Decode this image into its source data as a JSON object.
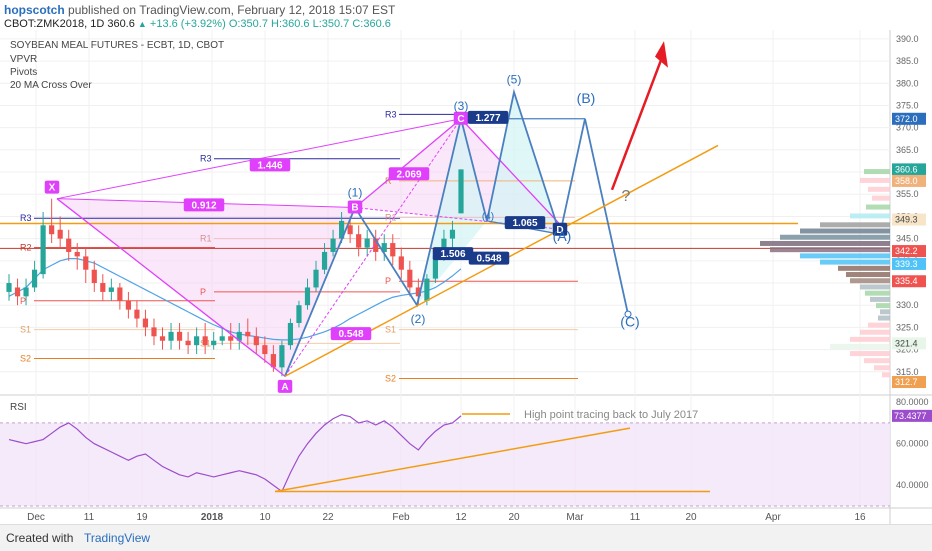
{
  "header": {
    "author": "hopscotch",
    "published": "published on TradingView.com, February 12, 2018 15:07 EST",
    "symbol": "CBOT:ZMK2018, 1D",
    "last": "360.6",
    "change": "+13.6 (+3.92%)",
    "ohlc": "O:350.7 H:360.6 L:350.7 C:360.6"
  },
  "legend": {
    "title": "SOYBEAN MEAL FUTURES - ECBT, 1D, CBOT",
    "items": [
      "VPVR",
      "Pivots",
      "20 MA Cross Over"
    ]
  },
  "footer": {
    "created_with": "Created with",
    "brand": "TradingView"
  },
  "colors": {
    "up": "#26a69a",
    "down": "#ef5350",
    "pattern_magenta": "#e040fb",
    "pattern_blue": "#2a6ebd",
    "trend_orange": "#f39c12",
    "arrow_red": "#e51c23"
  },
  "chart_data": [
    {
      "type": "candlestick",
      "title": "SOYBEAN MEAL FUTURES - ECBT, 1D, CBOT",
      "ylim": [
        310,
        392
      ],
      "y_ticks": [
        315,
        320,
        325,
        330,
        335,
        340,
        345,
        350,
        355,
        360,
        365,
        370,
        375,
        380,
        385,
        390
      ],
      "x_ticks": [
        "Dec",
        "11",
        "19",
        "2018",
        "10",
        "22",
        "Feb",
        "12",
        "20",
        "Mar",
        "11",
        "20",
        "Apr",
        "16"
      ],
      "price_labels": [
        {
          "text": "372.0",
          "value": 372.0,
          "color": "#2a6ebd"
        },
        {
          "text": "360.6",
          "value": 360.6,
          "color": "#26a69a"
        },
        {
          "text": "358.0",
          "value": 358.0,
          "color": "#f0b27a"
        },
        {
          "text": "349.3",
          "value": 349.3,
          "color": "#f8e5c8"
        },
        {
          "text": "342.2",
          "value": 342.2,
          "color": "#ef5350"
        },
        {
          "text": "339.3",
          "value": 339.3,
          "color": "#4fc3f7"
        },
        {
          "text": "335.4",
          "value": 335.4,
          "color": "#ef5350"
        },
        {
          "text": "321.4",
          "value": 321.4,
          "color": "#e8f5e9"
        },
        {
          "text": "312.7",
          "value": 312.7,
          "color": "#f0a050"
        }
      ],
      "candles": [
        {
          "o": 333,
          "c": 335,
          "h": 337,
          "l": 331
        },
        {
          "o": 334,
          "c": 332,
          "h": 336,
          "l": 330
        },
        {
          "o": 332,
          "c": 334,
          "h": 336,
          "l": 330
        },
        {
          "o": 334,
          "c": 338,
          "h": 340,
          "l": 333
        },
        {
          "o": 337,
          "c": 348,
          "h": 351,
          "l": 336
        },
        {
          "o": 348,
          "c": 346,
          "h": 354,
          "l": 344
        },
        {
          "o": 347,
          "c": 345,
          "h": 350,
          "l": 343
        },
        {
          "o": 345,
          "c": 342,
          "h": 347,
          "l": 340
        },
        {
          "o": 342,
          "c": 341,
          "h": 344,
          "l": 338
        },
        {
          "o": 341,
          "c": 338,
          "h": 343,
          "l": 335
        },
        {
          "o": 338,
          "c": 335,
          "h": 340,
          "l": 333
        },
        {
          "o": 335,
          "c": 333,
          "h": 337,
          "l": 331
        },
        {
          "o": 333,
          "c": 334,
          "h": 336,
          "l": 331
        },
        {
          "o": 334,
          "c": 331,
          "h": 335,
          "l": 329
        },
        {
          "o": 331,
          "c": 329,
          "h": 333,
          "l": 327
        },
        {
          "o": 329,
          "c": 327,
          "h": 331,
          "l": 325
        },
        {
          "o": 327,
          "c": 325,
          "h": 329,
          "l": 323
        },
        {
          "o": 325,
          "c": 323,
          "h": 327,
          "l": 321
        },
        {
          "o": 323,
          "c": 322,
          "h": 325,
          "l": 320
        },
        {
          "o": 322,
          "c": 324,
          "h": 326,
          "l": 320
        },
        {
          "o": 324,
          "c": 322,
          "h": 326,
          "l": 320
        },
        {
          "o": 322,
          "c": 321,
          "h": 324,
          "l": 319
        },
        {
          "o": 321,
          "c": 323,
          "h": 325,
          "l": 319
        },
        {
          "o": 323,
          "c": 321,
          "h": 326,
          "l": 319
        },
        {
          "o": 321,
          "c": 322,
          "h": 324,
          "l": 320
        },
        {
          "o": 322,
          "c": 323,
          "h": 325,
          "l": 321
        },
        {
          "o": 323,
          "c": 322,
          "h": 326,
          "l": 320
        },
        {
          "o": 322,
          "c": 324,
          "h": 326,
          "l": 320
        },
        {
          "o": 324,
          "c": 323,
          "h": 327,
          "l": 321
        },
        {
          "o": 323,
          "c": 321,
          "h": 325,
          "l": 319
        },
        {
          "o": 321,
          "c": 319,
          "h": 323,
          "l": 317
        },
        {
          "o": 319,
          "c": 316,
          "h": 321,
          "l": 315
        },
        {
          "o": 316,
          "c": 321,
          "h": 322,
          "l": 314
        },
        {
          "o": 321,
          "c": 326,
          "h": 327,
          "l": 320
        },
        {
          "o": 326,
          "c": 330,
          "h": 331,
          "l": 325
        },
        {
          "o": 330,
          "c": 334,
          "h": 336,
          "l": 329
        },
        {
          "o": 334,
          "c": 338,
          "h": 340,
          "l": 333
        },
        {
          "o": 338,
          "c": 342,
          "h": 344,
          "l": 337
        },
        {
          "o": 342,
          "c": 345,
          "h": 347,
          "l": 341
        },
        {
          "o": 345,
          "c": 349,
          "h": 351,
          "l": 344
        },
        {
          "o": 348,
          "c": 346,
          "h": 350,
          "l": 344
        },
        {
          "o": 346,
          "c": 343,
          "h": 348,
          "l": 341
        },
        {
          "o": 343,
          "c": 345,
          "h": 347,
          "l": 341
        },
        {
          "o": 345,
          "c": 342,
          "h": 347,
          "l": 340
        },
        {
          "o": 342,
          "c": 344,
          "h": 346,
          "l": 340
        },
        {
          "o": 344,
          "c": 341,
          "h": 346,
          "l": 339
        },
        {
          "o": 341,
          "c": 338,
          "h": 343,
          "l": 336
        },
        {
          "o": 338,
          "c": 334,
          "h": 340,
          "l": 332
        },
        {
          "o": 334,
          "c": 332,
          "h": 336,
          "l": 330
        },
        {
          "o": 331,
          "c": 336,
          "h": 337,
          "l": 330
        },
        {
          "o": 336,
          "c": 341,
          "h": 342,
          "l": 335
        },
        {
          "o": 341,
          "c": 345,
          "h": 347,
          "l": 340
        },
        {
          "o": 345,
          "c": 347,
          "h": 349,
          "l": 343
        },
        {
          "o": 350.7,
          "c": 360.6,
          "h": 360.6,
          "l": 350.7
        }
      ],
      "annotations": {
        "harmonic_labels": [
          "X",
          "A",
          "B",
          "C",
          "D"
        ],
        "harmonic_ratios": [
          "1.446",
          "0.912",
          "2.069",
          "0.548",
          "1.065",
          "0.548",
          "1.277",
          "1.506"
        ],
        "wave_labels": [
          "(1)",
          "(2)",
          "(3)",
          "(4)",
          "(5)",
          "(A)",
          "(B)",
          "(C)"
        ],
        "pivot_labels": [
          "R3",
          "R2",
          "R1",
          "P",
          "S1",
          "S2"
        ],
        "question_mark": "?"
      }
    },
    {
      "type": "line",
      "title": "RSI",
      "ylim": [
        30,
        82
      ],
      "y_ticks": [
        40,
        60,
        80
      ],
      "last_label": "73.4377",
      "note": "High point tracing back to July 2017",
      "values": [
        62,
        61,
        60,
        61,
        62,
        65,
        68,
        70,
        67,
        63,
        60,
        58,
        56,
        54,
        52,
        54,
        55,
        52,
        49,
        47,
        45,
        44,
        46,
        45,
        44,
        45,
        46,
        47,
        46,
        45,
        43,
        40,
        37,
        46,
        54,
        60,
        65,
        69,
        72,
        74,
        73,
        70,
        71,
        69,
        71,
        68,
        64,
        60,
        57,
        62,
        66,
        69,
        70,
        73.4
      ]
    }
  ]
}
